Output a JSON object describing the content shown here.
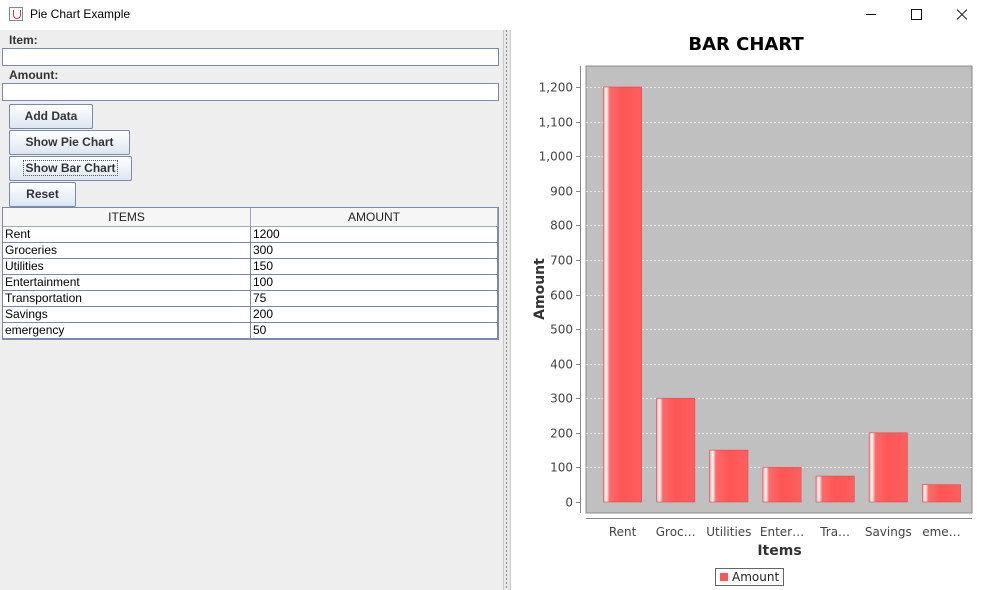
{
  "window": {
    "title": "Pie Chart Example",
    "controls": [
      "minimize",
      "maximize",
      "close"
    ]
  },
  "form": {
    "item_label": "Item:",
    "item_value": "",
    "amount_label": "Amount:",
    "amount_value": ""
  },
  "buttons": {
    "add": "Add Data",
    "pie": "Show Pie Chart",
    "bar": "Show Bar Chart",
    "reset": "Reset"
  },
  "table": {
    "columns": [
      "ITEMS",
      "AMOUNT"
    ],
    "rows": [
      [
        "Rent",
        "1200"
      ],
      [
        "Groceries",
        "300"
      ],
      [
        "Utilities",
        "150"
      ],
      [
        "Entertainment",
        "100"
      ],
      [
        "Transportation",
        "75"
      ],
      [
        "Savings",
        "200"
      ],
      [
        "emergency",
        "50"
      ]
    ]
  },
  "colors": {
    "bar": "#ff5555",
    "plot_bg": "#c0c0c0"
  },
  "chart_data": {
    "type": "bar",
    "title": "BAR CHART",
    "xlabel": "Items",
    "ylabel": "Amount",
    "categories": [
      "Rent",
      "Groc…",
      "Utilities",
      "Enter…",
      "Tra…",
      "Savings",
      "eme…"
    ],
    "series": [
      {
        "name": "Amount",
        "values": [
          1200,
          300,
          150,
          100,
          75,
          200,
          50
        ]
      }
    ],
    "ylim": [
      0,
      1200
    ],
    "yticks": [
      "0",
      "100",
      "200",
      "300",
      "400",
      "500",
      "600",
      "700",
      "800",
      "900",
      "1,000",
      "1,100",
      "1,200"
    ],
    "grid": true,
    "legend": "bottom-center"
  }
}
